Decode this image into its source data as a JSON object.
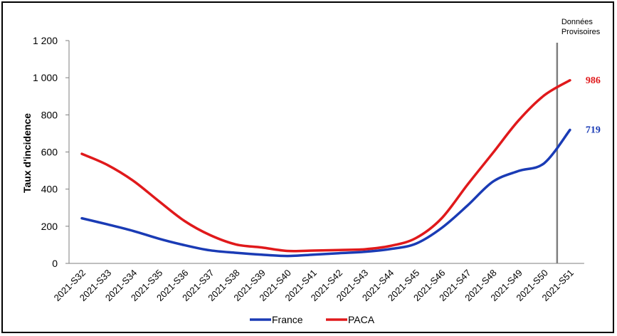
{
  "chart_data": {
    "type": "line",
    "ylabel": "Taux d'incidence",
    "xlabel": "",
    "ylim": [
      0,
      1200
    ],
    "yticks": [
      0,
      200,
      400,
      600,
      800,
      1000,
      1200
    ],
    "ytick_labels": [
      "0",
      "200",
      "400",
      "600",
      "800",
      "1 000",
      "1 200"
    ],
    "categories": [
      "2021-S32",
      "2021-S33",
      "2021-S34",
      "2021-S35",
      "2021-S36",
      "2021-S37",
      "2021-S38",
      "2021-S39",
      "2021-S40",
      "2021-S41",
      "2021-S42",
      "2021-S43",
      "2021-S44",
      "2021-S45",
      "2021-S46",
      "2021-S47",
      "2021-S48",
      "2021-S49",
      "2021-S50",
      "2021-S51"
    ],
    "series": [
      {
        "name": "France",
        "color": "#1a3bb5",
        "values": [
          243,
          210,
          175,
          133,
          98,
          70,
          57,
          47,
          40,
          47,
          55,
          62,
          77,
          106,
          190,
          310,
          440,
          498,
          540,
          719
        ]
      },
      {
        "name": "PACA",
        "color": "#e0191b",
        "values": [
          590,
          530,
          445,
          335,
          228,
          152,
          102,
          86,
          67,
          69,
          72,
          76,
          94,
          136,
          242,
          422,
          595,
          770,
          905,
          986
        ]
      }
    ],
    "end_labels": [
      "719",
      "986"
    ],
    "annotation": {
      "lines": [
        "Données",
        "Provisoires"
      ],
      "category": "2021-S50.5"
    },
    "legend_position": "bottom-center",
    "grid": false
  }
}
